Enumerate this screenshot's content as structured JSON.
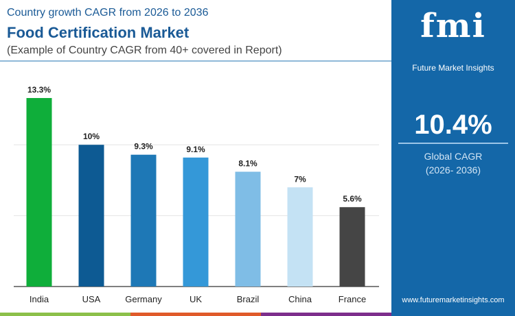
{
  "header": {
    "subtitle": "Country growth CAGR from 2026 to 2036",
    "title": "Food Certification Market",
    "note": "(Example of Country CAGR from 40+ covered in Report)"
  },
  "panel": {
    "logo": "fmi",
    "brand": "Future Market Insights",
    "global_value": "10.4%",
    "global_label": "Global CAGR",
    "global_period": "(2026- 2036)",
    "url": "www.futuremarketinsights.com"
  },
  "chart_data": {
    "type": "bar",
    "categories": [
      "India",
      "USA",
      "Germany",
      "UK",
      "Brazil",
      "China",
      "France"
    ],
    "values": [
      13.3,
      10,
      9.3,
      9.1,
      8.1,
      7,
      5.6
    ],
    "labels": [
      "13.3%",
      "10%",
      "9.3%",
      "9.1%",
      "8.1%",
      "7%",
      "5.6%"
    ],
    "colors": [
      "#0fae3a",
      "#0d5a93",
      "#1e78b6",
      "#3498d8",
      "#7fbde6",
      "#c4e2f4",
      "#454545"
    ],
    "ylim": [
      0,
      13.3
    ],
    "gridlines": [
      5,
      10
    ],
    "grid": true
  },
  "colors": {
    "accent": "#1467a8",
    "strip": [
      "#8cc04a",
      "#e05a2a",
      "#7d2e8c"
    ]
  }
}
